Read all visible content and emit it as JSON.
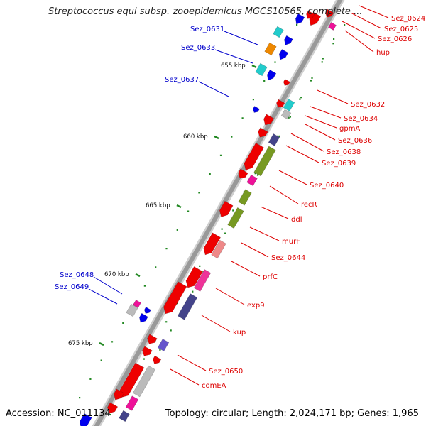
{
  "title": "Streptococcus equi subsp. zooepidemicus MGCS10565, complete ...",
  "footer": {
    "accession": "Accession: NC_011134",
    "topology": "Topology: circular; Length: 2,024,171 bp; Genes: 1,965"
  },
  "colors": {
    "backbone": "#999999",
    "tick": "#228822",
    "label_red": "#dd0000",
    "label_blue": "#0000cc"
  },
  "ticks_kbp": [
    "655 kbp",
    "660 kbp",
    "665 kbp",
    "670 kbp",
    "675 kbp"
  ],
  "labels_left": [
    "Sez_0631",
    "Sez_0633",
    "Sez_0637",
    "Sez_0648",
    "Sez_0649"
  ],
  "labels_right": [
    "Sez_0624",
    "Sez_0625",
    "Sez_0626",
    "hup",
    "Sez_0632",
    "Sez_0634",
    "gpmA",
    "Sez_0636",
    "Sez_0638",
    "Sez_0639",
    "Sez_0640",
    "recR",
    "ddl",
    "murF",
    "Sez_0644",
    "prfC",
    "exp9",
    "kup",
    "Sez_0650",
    "comEA"
  ]
}
